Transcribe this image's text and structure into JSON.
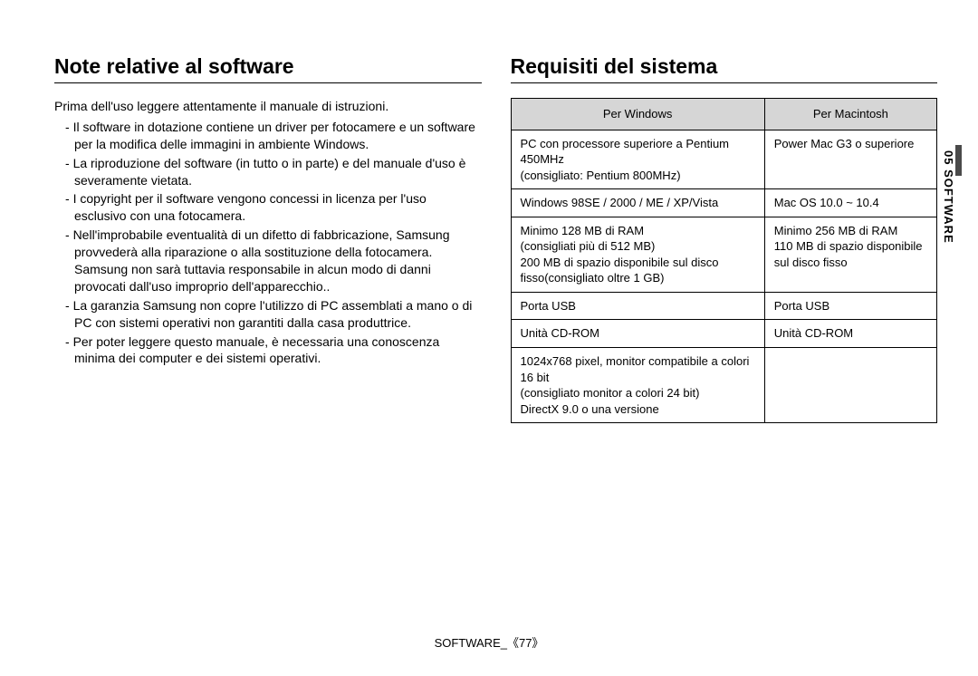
{
  "left": {
    "heading": "Note relative al software",
    "intro": "Prima dell'uso leggere attentamente il manuale di istruzioni.",
    "bullets": [
      "Il software in dotazione contiene un driver per fotocamere e un software per la modifica delle immagini in ambiente Windows.",
      "La riproduzione del software (in tutto o in parte) e del manuale d'uso è severamente vietata.",
      "I copyright per il software vengono concessi in licenza per l'uso esclusivo con una fotocamera.",
      "Nell'improbabile eventualità di un difetto di fabbricazione, Samsung provvederà alla riparazione o alla sostituzione della fotocamera. Samsung non sarà tuttavia responsabile in alcun modo di danni provocati dall'uso improprio dell'apparecchio..",
      "La garanzia Samsung non copre l'utilizzo di PC assemblati a mano o di PC con sistemi operativi non garantiti dalla casa produttrice.",
      "Per poter leggere questo manuale, è necessaria una conoscenza minima dei computer e dei sistemi operativi."
    ]
  },
  "right": {
    "heading": "Requisiti del sistema",
    "table": {
      "headers": [
        "Per Windows",
        "Per Macintosh"
      ],
      "rows": [
        [
          "PC con processore superiore a Pentium 450MHz\n(consigliato: Pentium 800MHz)",
          "Power Mac G3 o superiore"
        ],
        [
          "Windows 98SE / 2000 / ME / XP/Vista",
          "Mac OS 10.0 ~ 10.4"
        ],
        [
          "Minimo 128 MB di RAM\n(consigliati più di 512 MB)\n200 MB di spazio disponibile sul disco fisso(consigliato oltre 1 GB)",
          "Minimo 256 MB di RAM\n110 MB di spazio disponibile sul disco fisso"
        ],
        [
          "Porta USB",
          "Porta USB"
        ],
        [
          "Unità CD-ROM",
          "Unità CD-ROM"
        ],
        [
          "1024x768 pixel, monitor compatibile a colori 16 bit\n(consigliato monitor a colori 24 bit)\nDirectX 9.0 o una versione",
          ""
        ]
      ]
    }
  },
  "sideTab": "05 SOFTWARE",
  "footer": "SOFTWARE_《77》",
  "colors": {
    "tableHeaderBg": "#d6d6d6",
    "sideTabDark": "#4a4a4a"
  }
}
